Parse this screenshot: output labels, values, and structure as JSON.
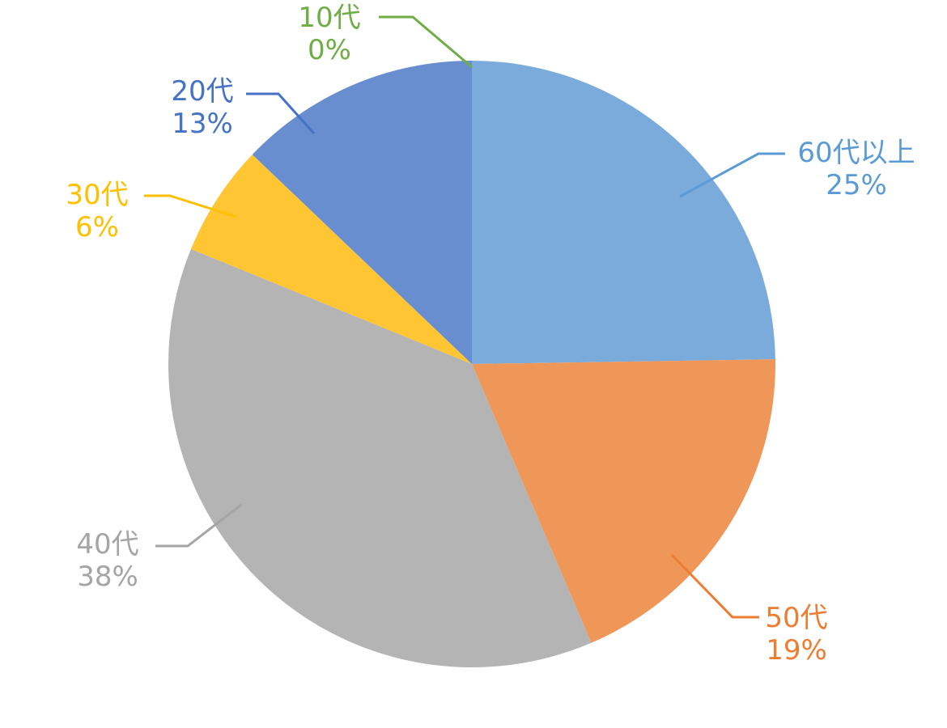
{
  "chart_data": {
    "type": "pie",
    "title": "",
    "start_angle_deg": 0,
    "direction": "clockwise",
    "slices": [
      {
        "category": "60代以上",
        "value": 25,
        "pct_label": "25%",
        "color": "#7aabdb",
        "line_color": "#5b9bd5"
      },
      {
        "category": "50代",
        "value": 19,
        "pct_label": "19%",
        "color": "#ef9759",
        "line_color": "#ed7d31"
      },
      {
        "category": "40代",
        "value": 38,
        "pct_label": "38%",
        "color": "#b4b4b4",
        "line_color": "#a5a5a5"
      },
      {
        "category": "30代",
        "value": 6,
        "pct_label": "6%",
        "color": "#ffc532",
        "line_color": "#ffc000"
      },
      {
        "category": "20代",
        "value": 13,
        "pct_label": "13%",
        "color": "#698ed0",
        "line_color": "#4472c4"
      },
      {
        "category": "10代",
        "value": 0,
        "pct_label": "0%",
        "color": "#70ad47",
        "line_color": "#70ad47"
      }
    ]
  }
}
